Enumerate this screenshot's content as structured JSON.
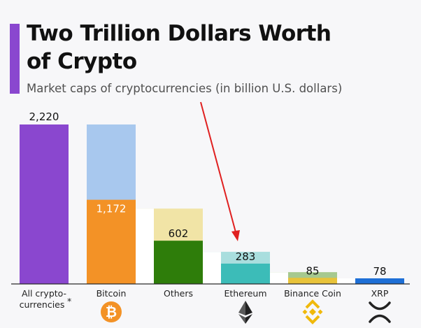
{
  "header": {
    "title_line1": "Two Trillion Dollars Worth",
    "title_line2": "of Crypto",
    "subtitle": "Market caps of cryptocurrencies (in billion U.S. dollars)"
  },
  "colors": {
    "accent": "#8a47cf",
    "total": "#8a47cf",
    "bitcoin": "#f39226",
    "others": "#2e7d0a",
    "ethereum": "#3cbcb8",
    "binance": "#e8c33a",
    "xrp": "#1e6fd6",
    "arrow": "#e02020"
  },
  "chart_data": {
    "type": "bar",
    "title": "Two Trillion Dollars Worth of Crypto",
    "subtitle": "Market caps of cryptocurrencies (in billion U.S. dollars)",
    "unit": "billion U.S. dollars",
    "categories": [
      "All crypto-currencies*",
      "Bitcoin",
      "Others",
      "Ethereum",
      "Binance Coin",
      "XRP"
    ],
    "values": [
      2220,
      1172,
      602,
      283,
      85,
      78
    ],
    "value_labels": [
      "2,220",
      "1,172",
      "602",
      "283",
      "85",
      "78"
    ],
    "icons": [
      "",
      "bitcoin-icon",
      "",
      "ethereum-icon",
      "binance-coin-icon",
      "xrp-icon"
    ],
    "style": "waterfall breakdown with nested bands",
    "grid": false,
    "legend": "none"
  }
}
